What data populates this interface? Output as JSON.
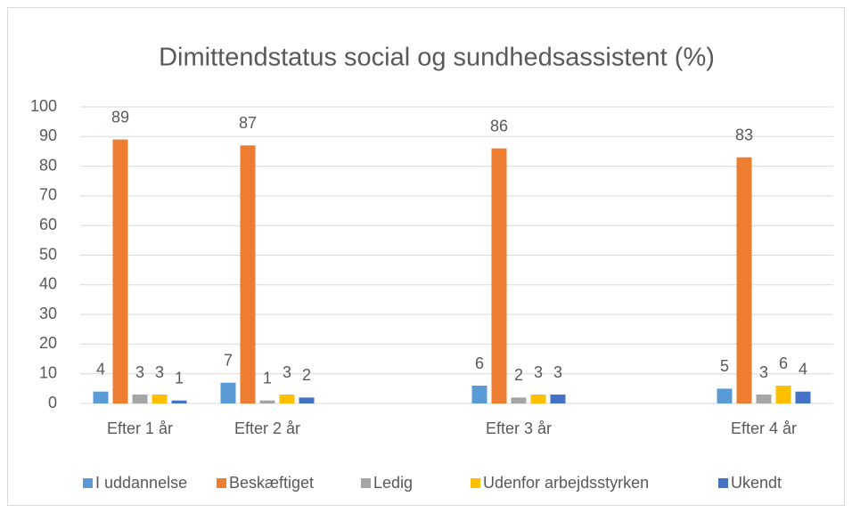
{
  "chart_data": {
    "type": "bar",
    "title": "Dimittendstatus social og sundhedsassistent (%)",
    "categories": [
      "Efter 1 år",
      "Efter 2 år",
      "Efter 3 år",
      "Efter 4 år"
    ],
    "series": [
      {
        "name": "I uddannelse",
        "color": "#5b9bd5",
        "values": [
          4,
          7,
          6,
          5
        ]
      },
      {
        "name": "Beskæftiget",
        "color": "#ed7d31",
        "values": [
          89,
          87,
          86,
          83
        ]
      },
      {
        "name": "Ledig",
        "color": "#a5a5a5",
        "values": [
          3,
          1,
          2,
          3
        ]
      },
      {
        "name": "Udenfor arbejdsstyrken",
        "color": "#ffc000",
        "values": [
          3,
          3,
          3,
          6
        ]
      },
      {
        "name": "Ukendt",
        "color": "#4472c4",
        "values": [
          1,
          2,
          3,
          4
        ]
      }
    ],
    "ylim": [
      0,
      100
    ],
    "yticks": [
      0,
      10,
      20,
      30,
      40,
      50,
      60,
      70,
      80,
      90,
      100
    ],
    "grid": true,
    "legend": "bottom"
  }
}
